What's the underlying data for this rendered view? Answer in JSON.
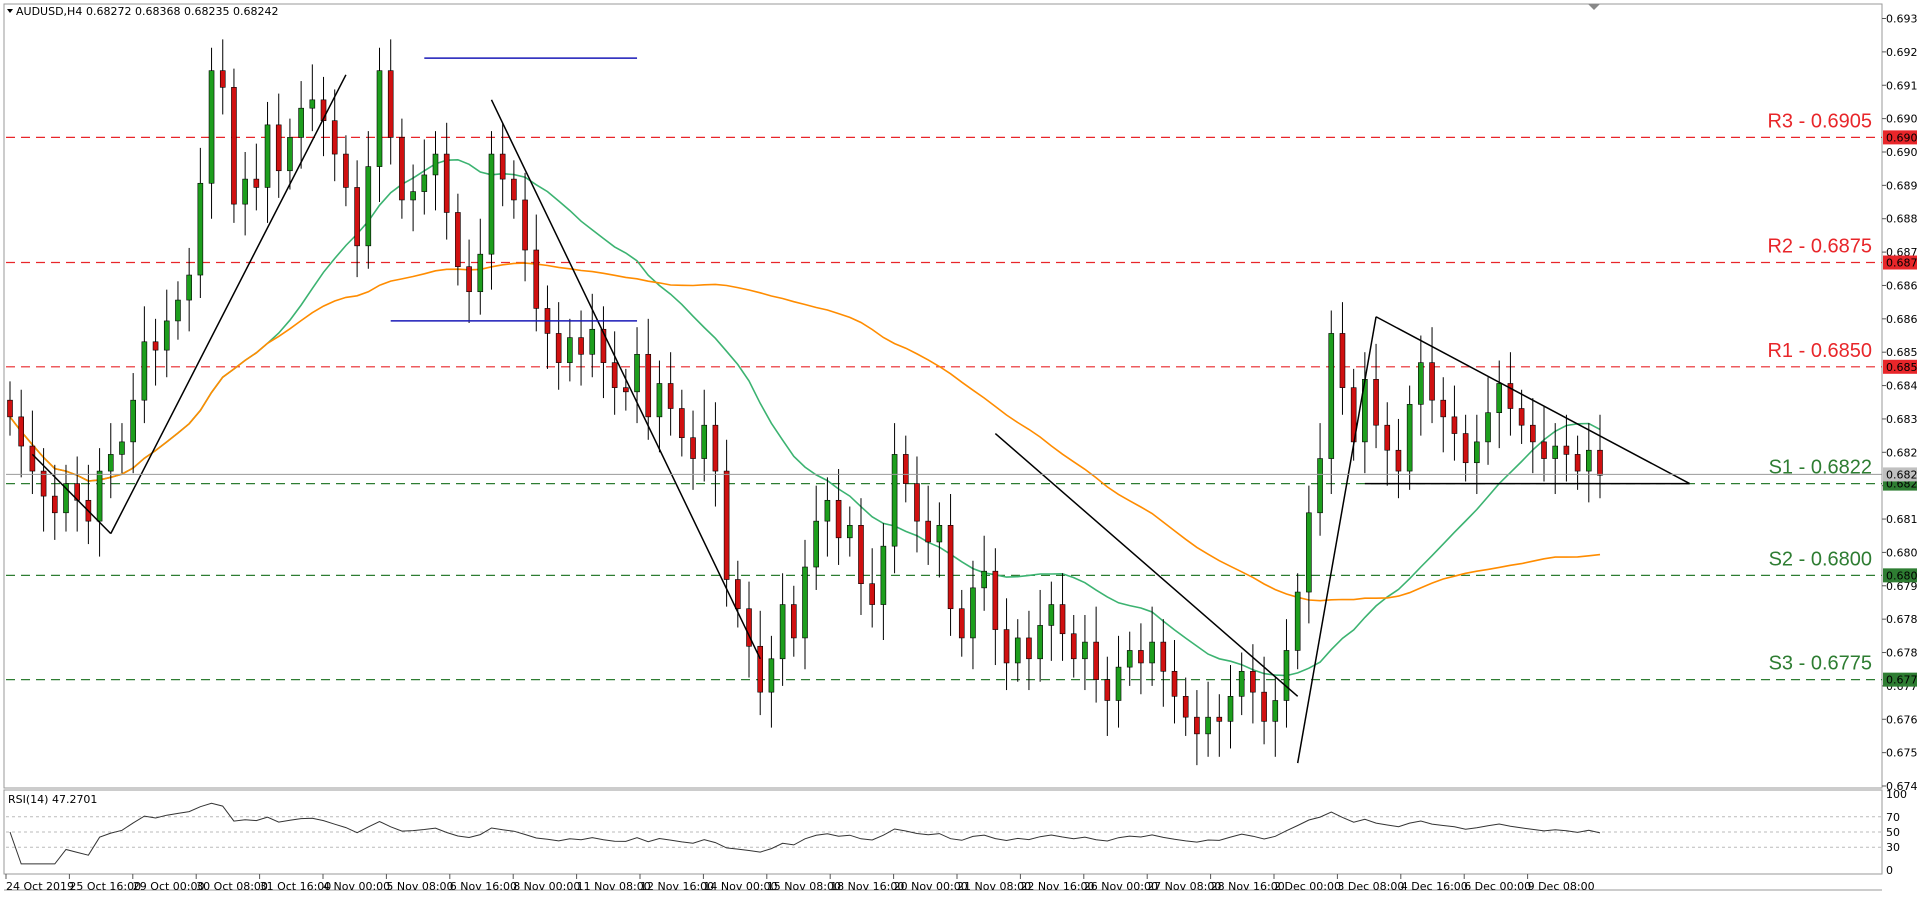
{
  "header": {
    "symbol": "AUDUSD,H4",
    "ohlc": "0.68272 0.68368 0.68235 0.68242"
  },
  "rsi_panel": {
    "label": "RSI(14) 47.2701",
    "ticks": [
      "100",
      "70",
      "50",
      "30",
      "0"
    ]
  },
  "colors": {
    "bull": "#1d9e1d",
    "bear": "#d01010",
    "resistance": "#e8262a",
    "support": "#2e7d32",
    "ma_short": "#3cb371",
    "ma_long": "#ff8c00",
    "trendline": "#000000",
    "range_line": "#1a1ab8"
  },
  "chart_data": {
    "type": "candlestick",
    "instrument": "AUDUSD",
    "timeframe": "H4",
    "ylim": [
      0.67495,
      0.69365
    ],
    "y_ticks": [
      "0.69335",
      "0.69255",
      "0.69175",
      "0.69095",
      "0.69015",
      "0.68935",
      "0.68855",
      "0.68775",
      "0.68695",
      "0.68615",
      "0.68535",
      "0.68455",
      "0.68375",
      "0.68295",
      "0.68215",
      "0.68135",
      "0.68055",
      "0.67975",
      "0.67895",
      "0.67815",
      "0.67735",
      "0.67655",
      "0.67575",
      "0.67495"
    ],
    "x_labels": [
      "24 Oct 2019",
      "25 Oct 16:00",
      "29 Oct 00:00",
      "30 Oct 08:00",
      "31 Oct 16:00",
      "4 Nov 00:00",
      "5 Nov 08:00",
      "6 Nov 16:00",
      "8 Nov 00:00",
      "11 Nov 08:00",
      "12 Nov 16:00",
      "14 Nov 00:00",
      "15 Nov 08:00",
      "18 Nov 16:00",
      "20 Nov 00:00",
      "21 Nov 08:00",
      "22 Nov 16:00",
      "26 Nov 00:00",
      "27 Nov 08:00",
      "28 Nov 16:00",
      "2 Dec 00:00",
      "3 Dec 08:00",
      "4 Dec 16:00",
      "6 Dec 00:00",
      "9 Dec 08:00"
    ],
    "levels": [
      {
        "label": "R3 - 0.6905",
        "value": 0.6905,
        "tag": "0.69050",
        "kind": "resistance"
      },
      {
        "label": "R2 - 0.6875",
        "value": 0.6875,
        "tag": "0.68750",
        "kind": "resistance"
      },
      {
        "label": "R1 - 0.6850",
        "value": 0.685,
        "tag": "0.68500",
        "kind": "resistance"
      },
      {
        "label": "S1 - 0.6822",
        "value": 0.6822,
        "tag": "0.68220",
        "kind": "support"
      },
      {
        "label": "S2 - 0.6800",
        "value": 0.68,
        "tag": "0.68000",
        "kind": "support"
      },
      {
        "label": "S3 - 0.6775",
        "value": 0.6775,
        "tag": "0.67750",
        "kind": "support"
      }
    ],
    "current_price": {
      "value": 0.68242,
      "tag": "0.68242"
    },
    "closes": [
      0.6838,
      0.6831,
      0.6825,
      0.6819,
      0.6815,
      0.6822,
      0.6818,
      0.6813,
      0.6825,
      0.6829,
      0.6832,
      0.6842,
      0.6856,
      0.6854,
      0.6861,
      0.6866,
      0.6872,
      0.6894,
      0.6921,
      0.6917,
      0.6889,
      0.6895,
      0.6893,
      0.6908,
      0.6897,
      0.6905,
      0.6912,
      0.6914,
      0.6909,
      0.6901,
      0.6893,
      0.6879,
      0.6898,
      0.6921,
      0.6905,
      0.689,
      0.6892,
      0.6896,
      0.6901,
      0.6887,
      0.6874,
      0.6868,
      0.6877,
      0.6901,
      0.6895,
      0.689,
      0.6878,
      0.6864,
      0.6858,
      0.6851,
      0.6857,
      0.6853,
      0.6859,
      0.6851,
      0.6845,
      0.6844,
      0.6853,
      0.6838,
      0.6846,
      0.684,
      0.6833,
      0.6828,
      0.6836,
      0.6825,
      0.6799,
      0.6792,
      0.6783,
      0.6772,
      0.678,
      0.6793,
      0.6785,
      0.6802,
      0.6813,
      0.6818,
      0.6809,
      0.6812,
      0.6798,
      0.6793,
      0.6807,
      0.6829,
      0.6822,
      0.6813,
      0.6808,
      0.6812,
      0.6792,
      0.6785,
      0.6797,
      0.6801,
      0.6787,
      0.6779,
      0.6785,
      0.678,
      0.6788,
      0.6793,
      0.6786,
      0.678,
      0.6784,
      0.6775,
      0.677,
      0.6778,
      0.6782,
      0.6779,
      0.6784,
      0.6777,
      0.6771,
      0.6766,
      0.6762,
      0.6766,
      0.6765,
      0.6771,
      0.6777,
      0.6772,
      0.6765,
      0.677,
      0.6782,
      0.6796,
      0.6815,
      0.6828,
      0.6858,
      0.6845,
      0.6832,
      0.6847,
      0.6836,
      0.683,
      0.6825,
      0.6841,
      0.6851,
      0.6842,
      0.6838,
      0.6834,
      0.6827,
      0.6832,
      0.6839,
      0.6846,
      0.684,
      0.6836,
      0.6832,
      0.6828,
      0.6831,
      0.6829,
      0.6825,
      0.683,
      0.6824
    ]
  }
}
